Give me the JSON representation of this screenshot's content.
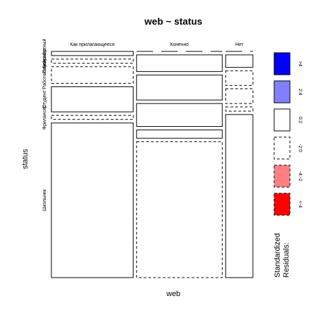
{
  "chart_data": {
    "type": "mosaic",
    "title": "web ~ status",
    "xlabel": "web",
    "ylabel": "status",
    "web_categories": [
      "Как прилагающееся",
      "Конечно",
      "Нет"
    ],
    "status_categories": [
      "Безработный",
      "Пенсионер",
      "Работающий",
      "Студент",
      "Фрилансер",
      "Школьник"
    ],
    "column_proportions": [
      0.42,
      0.44,
      0.14
    ],
    "cells": [
      {
        "web": "Как прилагающееся",
        "status": "Безработный",
        "proportion": 0.02,
        "residual_band": "0:2"
      },
      {
        "web": "Как прилагающееся",
        "status": "Пенсионер",
        "proportion": 0.02,
        "residual_band": "-2:0"
      },
      {
        "web": "Как прилагающееся",
        "status": "Работающий",
        "proportion": 0.08,
        "residual_band": "-2:0"
      },
      {
        "web": "Как прилагающееся",
        "status": "Студент",
        "proportion": 0.12,
        "residual_band": "0:2"
      },
      {
        "web": "Как прилагающееся",
        "status": "Фрилансер",
        "proportion": 0.02,
        "residual_band": "-2:0"
      },
      {
        "web": "Как прилагающееся",
        "status": "Школьник",
        "proportion": 0.74,
        "residual_band": "0:2"
      },
      {
        "web": "Конечно",
        "status": "Безработный",
        "proportion": 0.0,
        "residual_band": "0:2"
      },
      {
        "web": "Конечно",
        "status": "Пенсионер",
        "proportion": 0.08,
        "residual_band": "0:2"
      },
      {
        "web": "Конечно",
        "status": "Работающий",
        "proportion": 0.12,
        "residual_band": "0:2"
      },
      {
        "web": "Конечно",
        "status": "Студент",
        "proportion": 0.11,
        "residual_band": "0:2"
      },
      {
        "web": "Конечно",
        "status": "Фрилансер",
        "proportion": 0.04,
        "residual_band": "0:2"
      },
      {
        "web": "Конечно",
        "status": "Школьник",
        "proportion": 0.65,
        "residual_band": "-2:0"
      },
      {
        "web": "Нет",
        "status": "Безработный",
        "proportion": 0.0,
        "residual_band": "-2:0"
      },
      {
        "web": "Нет",
        "status": "Пенсионер",
        "proportion": 0.06,
        "residual_band": "0:2"
      },
      {
        "web": "Нет",
        "status": "Работающий",
        "proportion": 0.07,
        "residual_band": "-2:0"
      },
      {
        "web": "Нет",
        "status": "Студент",
        "proportion": 0.07,
        "residual_band": "-2:0"
      },
      {
        "web": "Нет",
        "status": "Фрилансер",
        "proportion": 0.02,
        "residual_band": "-2:0"
      },
      {
        "web": "Нет",
        "status": "Школьник",
        "proportion": 0.78,
        "residual_band": "0:2"
      }
    ],
    "legend": {
      "title_line1": "Standardized",
      "title_line2": "Residuals:",
      "items": [
        {
          "label": ">4",
          "color": "#0000ff",
          "dashed": false
        },
        {
          "label": "2:4",
          "color": "#8080ff",
          "dashed": false
        },
        {
          "label": "0:2",
          "color": "#ffffff",
          "dashed": false
        },
        {
          "label": "-2:0",
          "color": "#ffffff",
          "dashed": true
        },
        {
          "label": "-4:-2",
          "color": "#ff8080",
          "dashed": true
        },
        {
          "label": "<-4",
          "color": "#ff0000",
          "dashed": true
        }
      ]
    }
  }
}
